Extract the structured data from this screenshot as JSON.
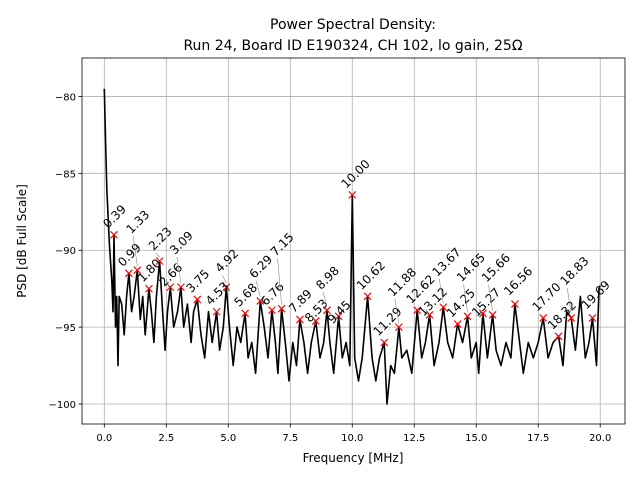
{
  "chart_data": {
    "type": "line",
    "title": "Power Spectral Density:",
    "subtitle": "Run 24, Board ID E190324, CH 102, lo gain, 25Ω",
    "xlabel": "Frequency [MHz]",
    "ylabel": "PSD [dB Full Scale]",
    "xlim": [
      -0.9,
      21.0
    ],
    "ylim": [
      -101.3,
      -77.5
    ],
    "grid": true,
    "xticks": [
      "0.0",
      "2.5",
      "5.0",
      "7.5",
      "10.0",
      "12.5",
      "15.0",
      "17.5",
      "20.0"
    ],
    "xtick_values": [
      0,
      2.5,
      5,
      7.5,
      10,
      12.5,
      15,
      17.5,
      20
    ],
    "yticks": [
      "−100",
      "−95",
      "−90",
      "−85",
      "−80"
    ],
    "ytick_values": [
      -100,
      -95,
      -90,
      -85,
      -80
    ],
    "series": [
      {
        "name": "PSD",
        "color": "#000000",
        "x": [
          0,
          0.05,
          0.1,
          0.2,
          0.3,
          0.35,
          0.39,
          0.45,
          0.5,
          0.55,
          0.6,
          0.7,
          0.8,
          0.9,
          0.99,
          1.1,
          1.2,
          1.33,
          1.45,
          1.55,
          1.65,
          1.8,
          1.9,
          2.0,
          2.1,
          2.23,
          2.35,
          2.45,
          2.55,
          2.66,
          2.8,
          2.95,
          3.09,
          3.2,
          3.35,
          3.5,
          3.6,
          3.75,
          3.9,
          4.05,
          4.2,
          4.35,
          4.53,
          4.65,
          4.8,
          4.92,
          5.05,
          5.2,
          5.35,
          5.5,
          5.68,
          5.8,
          5.95,
          6.1,
          6.29,
          6.45,
          6.6,
          6.76,
          6.9,
          7.0,
          7.15,
          7.3,
          7.45,
          7.6,
          7.75,
          7.89,
          8.05,
          8.2,
          8.35,
          8.53,
          8.7,
          8.85,
          8.98,
          9.1,
          9.25,
          9.45,
          9.6,
          9.75,
          9.9,
          10.0,
          10.1,
          10.25,
          10.4,
          10.62,
          10.8,
          10.95,
          11.1,
          11.29,
          11.4,
          11.55,
          11.7,
          11.88,
          12.0,
          12.2,
          12.4,
          12.62,
          12.8,
          12.95,
          13.12,
          13.3,
          13.5,
          13.67,
          13.85,
          14.05,
          14.25,
          14.45,
          14.65,
          14.8,
          15.0,
          15.1,
          15.27,
          15.45,
          15.66,
          15.8,
          16.0,
          16.2,
          16.4,
          16.56,
          16.75,
          16.9,
          17.1,
          17.3,
          17.5,
          17.7,
          17.9,
          18.1,
          18.32,
          18.5,
          18.65,
          18.83,
          19.0,
          19.2,
          19.4,
          19.55,
          19.69,
          19.85,
          19.95,
          20.0
        ],
        "y": [
          -79.5,
          -83,
          -86,
          -89.5,
          -92,
          -94,
          -89,
          -95,
          -93,
          -97.5,
          -93,
          -93.5,
          -95.5,
          -93,
          -91.5,
          -94,
          -93,
          -91.3,
          -94.5,
          -93,
          -95.5,
          -92.5,
          -94,
          -96,
          -93,
          -90.7,
          -94,
          -96.5,
          -94,
          -92.4,
          -95,
          -94,
          -92.4,
          -95,
          -93.5,
          -96,
          -94,
          -93.2,
          -95.5,
          -97,
          -94,
          -96,
          -94,
          -96.5,
          -95,
          -92.4,
          -95,
          -97.5,
          -95,
          -96,
          -94.1,
          -97,
          -96,
          -98,
          -93.3,
          -95,
          -97,
          -93.9,
          -96,
          -98,
          -93.8,
          -96,
          -98.5,
          -96,
          -97.5,
          -94.5,
          -96,
          -98,
          -96,
          -94.6,
          -97,
          -96,
          -93.9,
          -96,
          -98,
          -94.3,
          -97,
          -96,
          -97.5,
          -86.4,
          -97,
          -98.5,
          -97,
          -93,
          -97,
          -98.5,
          -97,
          -96,
          -100,
          -97.5,
          -98,
          -95,
          -97,
          -96.5,
          -98,
          -93.9,
          -97,
          -96,
          -94.2,
          -97.5,
          -96,
          -93.7,
          -96,
          -97,
          -94.8,
          -96,
          -94.3,
          -97,
          -96,
          -98,
          -94.1,
          -97,
          -94.2,
          -96.5,
          -97.5,
          -96,
          -97,
          -93.5,
          -96,
          -98,
          -96,
          -97,
          -96,
          -94.4,
          -97,
          -96,
          -95.6,
          -97.5,
          -94,
          -94.4,
          -96.5,
          -93,
          -97,
          -96,
          -94.4,
          -97.5,
          -92.5,
          -92.3
        ]
      }
    ],
    "peaks": {
      "color": "#ff0000",
      "labels": [
        "0.39",
        "0.99",
        "1.33",
        "1.80",
        "2.23",
        "2.66",
        "3.09",
        "3.75",
        "4.53",
        "4.92",
        "5.68",
        "6.29",
        "6.76",
        "7.15",
        "7.89",
        "8.53",
        "8.98",
        "9.45",
        "10.00",
        "10.62",
        "11.29",
        "11.88",
        "12.62",
        "13.12",
        "13.67",
        "14.25",
        "14.65",
        "15.27",
        "15.66",
        "16.56",
        "17.70",
        "18.32",
        "18.83",
        "19.69"
      ],
      "x": [
        0.39,
        0.99,
        1.33,
        1.8,
        2.23,
        2.66,
        3.09,
        3.75,
        4.53,
        4.92,
        5.68,
        6.29,
        6.76,
        7.15,
        7.89,
        8.53,
        8.98,
        9.45,
        10.0,
        10.62,
        11.29,
        11.88,
        12.62,
        13.12,
        13.67,
        14.25,
        14.65,
        15.27,
        15.66,
        16.56,
        17.7,
        18.32,
        18.83,
        19.69
      ],
      "y": [
        -89.0,
        -91.5,
        -91.3,
        -92.5,
        -90.7,
        -92.4,
        -92.4,
        -93.2,
        -94.0,
        -92.4,
        -94.1,
        -93.3,
        -93.9,
        -93.8,
        -94.5,
        -94.6,
        -93.9,
        -94.3,
        -86.4,
        -93.0,
        -96.0,
        -95.0,
        -93.9,
        -94.2,
        -93.7,
        -94.8,
        -94.3,
        -94.1,
        -94.2,
        -93.5,
        -94.4,
        -95.6,
        -94.4,
        -94.4
      ]
    }
  }
}
